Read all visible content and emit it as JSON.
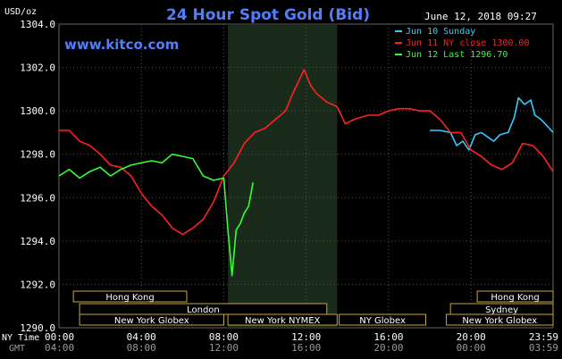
{
  "chart_data": {
    "type": "line",
    "title": "24 Hour Spot Gold (Bid)",
    "site": "www.kitco.com",
    "date_label": "June 12, 2018 09:27",
    "ylabel": "USD/oz",
    "ylim": [
      1290,
      1304
    ],
    "yticks": [
      "1290.0",
      "1292.0",
      "1294.0",
      "1296.0",
      "1298.0",
      "1300.0",
      "1302.0",
      "1304.0"
    ],
    "grid": true,
    "legend_position": "top-right",
    "x_row1_label": "NY Time",
    "x_row2_label": "GMT",
    "x_ticks_ny": [
      "00:00",
      "04:00",
      "08:00",
      "12:00",
      "16:00",
      "20:00",
      "23:59"
    ],
    "x_ticks_gmt": [
      "04:00",
      "08:00",
      "12:00",
      "16:00",
      "20:00",
      "00:00",
      "03:59"
    ],
    "series": [
      {
        "name": "Jun 10 Sunday",
        "color": "#33ccff",
        "points": [
          [
            18.0,
            1299.1
          ],
          [
            18.5,
            1299.1
          ],
          [
            19.0,
            1299.0
          ],
          [
            19.3,
            1298.4
          ],
          [
            19.6,
            1298.6
          ],
          [
            19.9,
            1298.2
          ],
          [
            20.2,
            1298.9
          ],
          [
            20.5,
            1299.0
          ],
          [
            20.8,
            1298.8
          ],
          [
            21.1,
            1298.6
          ],
          [
            21.4,
            1298.9
          ],
          [
            21.8,
            1299.0
          ],
          [
            22.1,
            1299.7
          ],
          [
            22.3,
            1300.6
          ],
          [
            22.6,
            1300.3
          ],
          [
            22.9,
            1300.5
          ],
          [
            23.1,
            1299.8
          ],
          [
            23.4,
            1299.6
          ],
          [
            23.7,
            1299.3
          ],
          [
            23.98,
            1299.0
          ]
        ]
      },
      {
        "name": "Jun 11 NY close 1300.00",
        "color": "#ff2222",
        "points": [
          [
            0.0,
            1299.1
          ],
          [
            0.5,
            1299.1
          ],
          [
            1.0,
            1298.6
          ],
          [
            1.5,
            1298.4
          ],
          [
            2.0,
            1298.0
          ],
          [
            2.5,
            1297.5
          ],
          [
            3.0,
            1297.4
          ],
          [
            3.5,
            1297.0
          ],
          [
            4.0,
            1296.2
          ],
          [
            4.5,
            1295.6
          ],
          [
            5.0,
            1295.2
          ],
          [
            5.5,
            1294.6
          ],
          [
            6.0,
            1294.3
          ],
          [
            6.5,
            1294.6
          ],
          [
            7.0,
            1295.0
          ],
          [
            7.5,
            1295.8
          ],
          [
            8.0,
            1297.0
          ],
          [
            8.5,
            1297.6
          ],
          [
            9.0,
            1298.5
          ],
          [
            9.5,
            1299.0
          ],
          [
            10.0,
            1299.2
          ],
          [
            10.5,
            1299.6
          ],
          [
            11.0,
            1300.0
          ],
          [
            11.3,
            1300.7
          ],
          [
            11.6,
            1301.3
          ],
          [
            11.9,
            1301.9
          ],
          [
            12.2,
            1301.2
          ],
          [
            12.5,
            1300.8
          ],
          [
            13.0,
            1300.4
          ],
          [
            13.5,
            1300.2
          ],
          [
            13.9,
            1299.4
          ],
          [
            14.3,
            1299.6
          ],
          [
            15.0,
            1299.8
          ],
          [
            15.5,
            1299.8
          ],
          [
            16.0,
            1300.0
          ],
          [
            16.5,
            1300.1
          ],
          [
            17.0,
            1300.1
          ],
          [
            17.5,
            1300.0
          ],
          [
            18.0,
            1300.0
          ],
          [
            18.5,
            1299.6
          ],
          [
            19.0,
            1299.0
          ],
          [
            19.5,
            1299.0
          ],
          [
            20.0,
            1298.2
          ],
          [
            20.5,
            1297.9
          ],
          [
            21.0,
            1297.5
          ],
          [
            21.5,
            1297.3
          ],
          [
            22.0,
            1297.6
          ],
          [
            22.5,
            1298.5
          ],
          [
            23.0,
            1298.4
          ],
          [
            23.5,
            1297.9
          ],
          [
            23.98,
            1297.2
          ]
        ]
      },
      {
        "name": "Jun 12 Last 1296.70",
        "color": "#33ff33",
        "points": [
          [
            0.0,
            1297.0
          ],
          [
            0.5,
            1297.3
          ],
          [
            1.0,
            1296.9
          ],
          [
            1.5,
            1297.2
          ],
          [
            2.0,
            1297.4
          ],
          [
            2.5,
            1297.0
          ],
          [
            3.0,
            1297.3
          ],
          [
            3.5,
            1297.5
          ],
          [
            4.0,
            1297.6
          ],
          [
            4.5,
            1297.7
          ],
          [
            5.0,
            1297.6
          ],
          [
            5.5,
            1298.0
          ],
          [
            6.0,
            1297.9
          ],
          [
            6.5,
            1297.8
          ],
          [
            7.0,
            1297.0
          ],
          [
            7.5,
            1296.8
          ],
          [
            8.0,
            1296.9
          ],
          [
            8.2,
            1294.5
          ],
          [
            8.4,
            1292.4
          ],
          [
            8.6,
            1294.5
          ],
          [
            8.8,
            1294.8
          ],
          [
            9.0,
            1295.3
          ],
          [
            9.2,
            1295.6
          ],
          [
            9.42,
            1296.7
          ]
        ]
      }
    ],
    "sessions": [
      {
        "label": "Hong Kong",
        "row": 0,
        "start": 0.7,
        "end": 6.2
      },
      {
        "label": "Hong Kong",
        "row": 0,
        "start": 20.3,
        "end": 23.98
      },
      {
        "label": "London",
        "row": 1,
        "start": 1.0,
        "end": 13.0
      },
      {
        "label": "Sydney",
        "row": 1,
        "start": 19.0,
        "end": 23.98
      },
      {
        "label": "New York Globex",
        "row": 2,
        "start": 1.0,
        "end": 8.0
      },
      {
        "label": "New York NYMEX",
        "row": 2,
        "start": 8.2,
        "end": 13.5
      },
      {
        "label": "NY Globex",
        "row": 2,
        "start": 13.6,
        "end": 17.8
      },
      {
        "label": "New York Globex",
        "row": 2,
        "start": 18.8,
        "end": 23.98
      }
    ],
    "highlight": {
      "start": 8.2,
      "end": 13.5
    }
  }
}
